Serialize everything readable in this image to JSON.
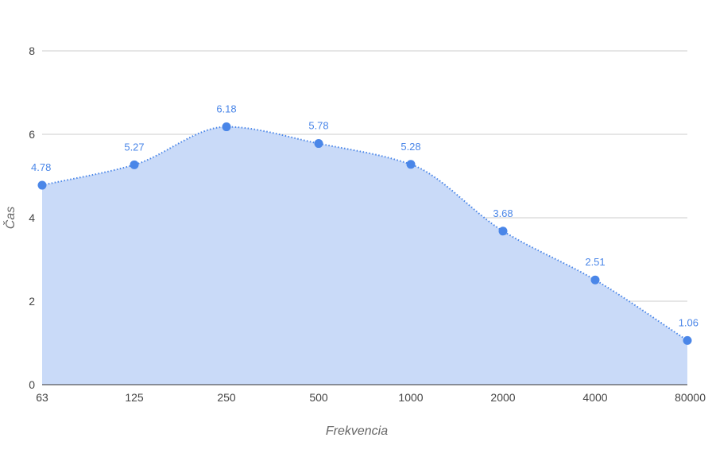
{
  "chart_data": {
    "type": "area",
    "xlabel": "Frekvencia",
    "ylabel": "Čas",
    "categories": [
      "63",
      "125",
      "250",
      "500",
      "1000",
      "2000",
      "4000",
      "80000"
    ],
    "series": [
      {
        "values": [
          4.78,
          5.27,
          6.18,
          5.78,
          5.28,
          3.68,
          2.51,
          1.06
        ]
      }
    ],
    "data_labels": [
      "4.78",
      "5.27",
      "6.18",
      "5.78",
      "5.28",
      "3.68",
      "2.51",
      "1.06"
    ],
    "ylim": [
      0,
      8
    ],
    "yticks": [
      "0",
      "2",
      "4",
      "6",
      "8"
    ],
    "grid": true,
    "legend": "none",
    "colors": {
      "line": "#4a86e8",
      "fill": "#c9daf8",
      "grid": "#cccccc",
      "baseline": "#333333"
    }
  }
}
